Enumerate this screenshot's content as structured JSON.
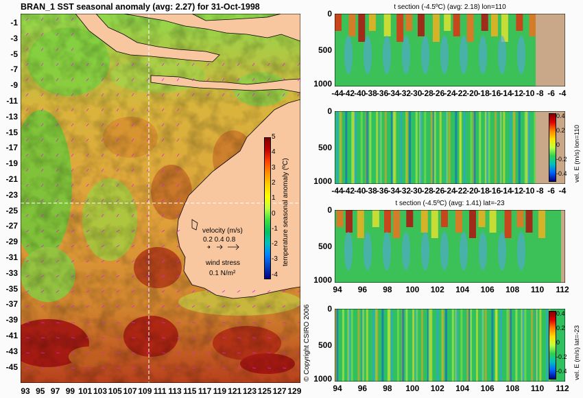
{
  "map": {
    "title": "BRAN_1  SST seasonal anomaly (avg: 2.27) for 31-Oct-1998",
    "lat_labels": [
      "-1",
      "-3",
      "-5",
      "-7",
      "-9",
      "-11",
      "-13",
      "-15",
      "-17",
      "-19",
      "-21",
      "-23",
      "-25",
      "-27",
      "-29",
      "-31",
      "-33",
      "-35",
      "-37",
      "-39",
      "-41",
      "-43",
      "-45"
    ],
    "lon_labels": [
      "93",
      "95",
      "97",
      "99",
      "101",
      "103",
      "105",
      "107",
      "109",
      "111",
      "113",
      "115",
      "117",
      "119",
      "121",
      "123",
      "125",
      "127",
      "129"
    ],
    "colorbar": {
      "label": "temperature seasonal anomaly (ºC)",
      "ticks": [
        "5",
        "4",
        "3",
        "2",
        "1",
        "0",
        "-1",
        "-2",
        "-3",
        "-4"
      ]
    },
    "velocity_legend": {
      "title": "velocity (m/s)",
      "values": "0.2 0.4 0.8"
    },
    "wind_legend": {
      "title": "wind stress",
      "value": "0.1 N/m²"
    },
    "crosshair": {
      "lon": 110,
      "lat": -23
    }
  },
  "copyright": "© Copyright CSIRO 2006",
  "panels": [
    {
      "title": "t section (-4.5ºC) (avg: 2.18) lon=110",
      "x_labels": [
        "-44",
        "-42",
        "-40",
        "-38",
        "-36",
        "-34",
        "-32",
        "-30",
        "-28",
        "-26",
        "-24",
        "-22",
        "-20",
        "-18",
        "-16",
        "-14",
        "-12",
        "-10",
        "-8",
        "-6",
        "-4"
      ],
      "y_labels": [
        "0",
        "500",
        "1000"
      ]
    },
    {
      "title": "",
      "x_labels": [
        "-44",
        "-42",
        "-40",
        "-38",
        "-36",
        "-34",
        "-32",
        "-30",
        "-28",
        "-26",
        "-24",
        "-22",
        "-20",
        "-18",
        "-16",
        "-14",
        "-12",
        "-10",
        "-8",
        "-6",
        "-4"
      ],
      "y_labels": [
        "0",
        "500",
        "1000"
      ],
      "colorbar": {
        "label": "vel. E (m/s) lon=110",
        "ticks": [
          "0.4",
          "0.2",
          "0",
          "-0.2",
          "-0.4"
        ]
      }
    },
    {
      "title": "t section (-4.5ºC) (avg: 1.41) lat=-23",
      "x_labels": [
        "94",
        "96",
        "98",
        "100",
        "102",
        "104",
        "106",
        "108",
        "110",
        "112"
      ],
      "y_labels": [
        "0",
        "500",
        "1000"
      ]
    },
    {
      "title": "",
      "x_labels": [
        "94",
        "96",
        "98",
        "100",
        "102",
        "104",
        "106",
        "108",
        "110",
        "112"
      ],
      "y_labels": [
        "0",
        "500",
        "1000"
      ],
      "colorbar": {
        "label": "vel. E (m/s) lat=-23",
        "ticks": [
          "0.4",
          "0.2",
          "0",
          "-0.2",
          "-0.4"
        ]
      }
    }
  ],
  "colors": {
    "land": "#f8c7a0",
    "deep_land": "#c8a888",
    "vector": "#e020e0"
  }
}
